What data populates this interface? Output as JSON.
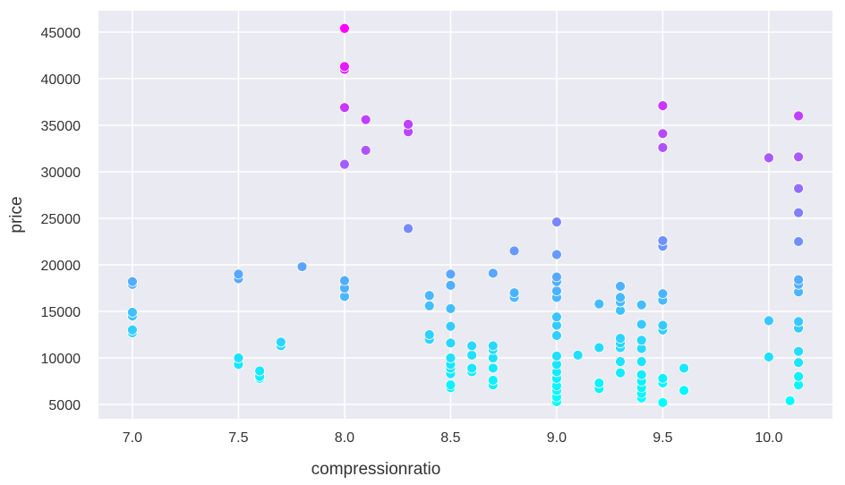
{
  "chart_data": {
    "type": "scatter",
    "title": "",
    "xlabel": "compressionratio",
    "ylabel": "price",
    "xlim": [
      6.84,
      10.3
    ],
    "ylim": [
      3460,
      47300
    ],
    "xticks": [
      7.0,
      7.5,
      8.0,
      8.5,
      9.0,
      9.5,
      10.0
    ],
    "xtick_labels": [
      "7.0",
      "7.5",
      "8.0",
      "8.5",
      "9.0",
      "9.5",
      "10.0"
    ],
    "yticks": [
      5000,
      10000,
      15000,
      20000,
      25000,
      30000,
      35000,
      40000,
      45000
    ],
    "ytick_labels": [
      "5000",
      "10000",
      "15000",
      "20000",
      "25000",
      "30000",
      "35000",
      "40000",
      "45000"
    ],
    "grid": true,
    "background_color": "#eaeaf2",
    "hue": "price",
    "colormap": "cool",
    "colormap_low": "#00ffff",
    "colormap_high": "#ff00ff",
    "groups": [
      {
        "x": 7.0,
        "prices": [
          18200,
          17900,
          14900,
          14500,
          13000,
          12700
        ]
      },
      {
        "x": 7.5,
        "prices": [
          19000,
          18500,
          10000,
          9300
        ]
      },
      {
        "x": 7.6,
        "prices": [
          8600,
          8000,
          7800
        ]
      },
      {
        "x": 7.7,
        "prices": [
          11700,
          11300
        ]
      },
      {
        "x": 7.8,
        "prices": [
          19800
        ]
      },
      {
        "x": 8.0,
        "prices": [
          45400,
          41300,
          41000,
          36900,
          30800,
          18300,
          17500,
          16600
        ]
      },
      {
        "x": 8.1,
        "prices": [
          35600,
          32300
        ]
      },
      {
        "x": 8.3,
        "prices": [
          35100,
          34300,
          23900
        ]
      },
      {
        "x": 8.4,
        "prices": [
          16700,
          15600,
          12500,
          12000
        ]
      },
      {
        "x": 8.5,
        "prices": [
          19000,
          17800,
          15300,
          13400,
          11600,
          10000,
          9300,
          8900,
          8300,
          7100,
          6800
        ]
      },
      {
        "x": 8.6,
        "prices": [
          11300,
          10300,
          8900,
          8500
        ]
      },
      {
        "x": 8.7,
        "prices": [
          19100,
          11300,
          10900,
          10000,
          8900,
          7600,
          7100
        ]
      },
      {
        "x": 8.8,
        "prices": [
          21500,
          17000,
          16500
        ]
      },
      {
        "x": 9.0,
        "prices": [
          24600,
          21100,
          18700,
          18200,
          17200,
          16500,
          14400,
          13500,
          12400,
          10200,
          9300,
          8500,
          7800,
          7000,
          6500,
          5800,
          5300
        ]
      },
      {
        "x": 9.1,
        "prices": [
          10300
        ]
      },
      {
        "x": 9.2,
        "prices": [
          15800,
          11100,
          7300,
          6700
        ]
      },
      {
        "x": 9.3,
        "prices": [
          17700,
          16500,
          16000,
          15100,
          12100,
          11600,
          11100,
          9600,
          8400
        ]
      },
      {
        "x": 9.4,
        "prices": [
          15700,
          13600,
          11900,
          11000,
          9600,
          8200,
          7500,
          6800,
          6200,
          5700
        ]
      },
      {
        "x": 9.5,
        "prices": [
          37100,
          34100,
          32600,
          22600,
          22000,
          16900,
          16200,
          13500,
          13000,
          7800,
          7300,
          5200
        ]
      },
      {
        "x": 9.6,
        "prices": [
          8900,
          6500
        ]
      },
      {
        "x": 10.0,
        "prices": [
          31500,
          14000,
          10100
        ]
      },
      {
        "x": 10.1,
        "prices": [
          5400
        ]
      },
      {
        "x": 10.14,
        "prices": [
          36000,
          31600,
          28200,
          25600,
          22500,
          18400,
          17900,
          17100,
          13900,
          13200,
          10700,
          9500,
          8000,
          7100
        ]
      }
    ]
  }
}
